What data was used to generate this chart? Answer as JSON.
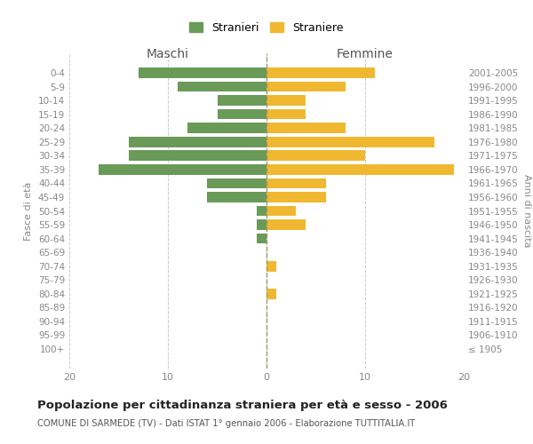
{
  "age_groups": [
    "0-4",
    "5-9",
    "10-14",
    "15-19",
    "20-24",
    "25-29",
    "30-34",
    "35-39",
    "40-44",
    "45-49",
    "50-54",
    "55-59",
    "60-64",
    "65-69",
    "70-74",
    "75-79",
    "80-84",
    "85-89",
    "90-94",
    "95-99",
    "100+"
  ],
  "birth_years": [
    "2001-2005",
    "1996-2000",
    "1991-1995",
    "1986-1990",
    "1981-1985",
    "1976-1980",
    "1971-1975",
    "1966-1970",
    "1961-1965",
    "1956-1960",
    "1951-1955",
    "1946-1950",
    "1941-1945",
    "1936-1940",
    "1931-1935",
    "1926-1930",
    "1921-1925",
    "1916-1920",
    "1911-1915",
    "1906-1910",
    "≤ 1905"
  ],
  "maschi": [
    13,
    9,
    5,
    5,
    8,
    14,
    14,
    17,
    6,
    6,
    1,
    1,
    1,
    0,
    0,
    0,
    0,
    0,
    0,
    0,
    0
  ],
  "femmine": [
    11,
    8,
    4,
    4,
    8,
    17,
    10,
    19,
    6,
    6,
    3,
    4,
    0,
    0,
    1,
    0,
    1,
    0,
    0,
    0,
    0
  ],
  "color_maschi": "#6a9a58",
  "color_femmine": "#f0b830",
  "title": "Popolazione per cittadinanza straniera per età e sesso - 2006",
  "subtitle": "COMUNE DI SARMEDE (TV) - Dati ISTAT 1° gennaio 2006 - Elaborazione TUTTITALIA.IT",
  "ylabel_left": "Fasce di età",
  "ylabel_right": "Anni di nascita",
  "xlabel_left": "Maschi",
  "xlabel_right": "Femmine",
  "legend_maschi": "Stranieri",
  "legend_femmine": "Straniere",
  "xlim": 20,
  "background_color": "#ffffff",
  "grid_color": "#cccccc"
}
